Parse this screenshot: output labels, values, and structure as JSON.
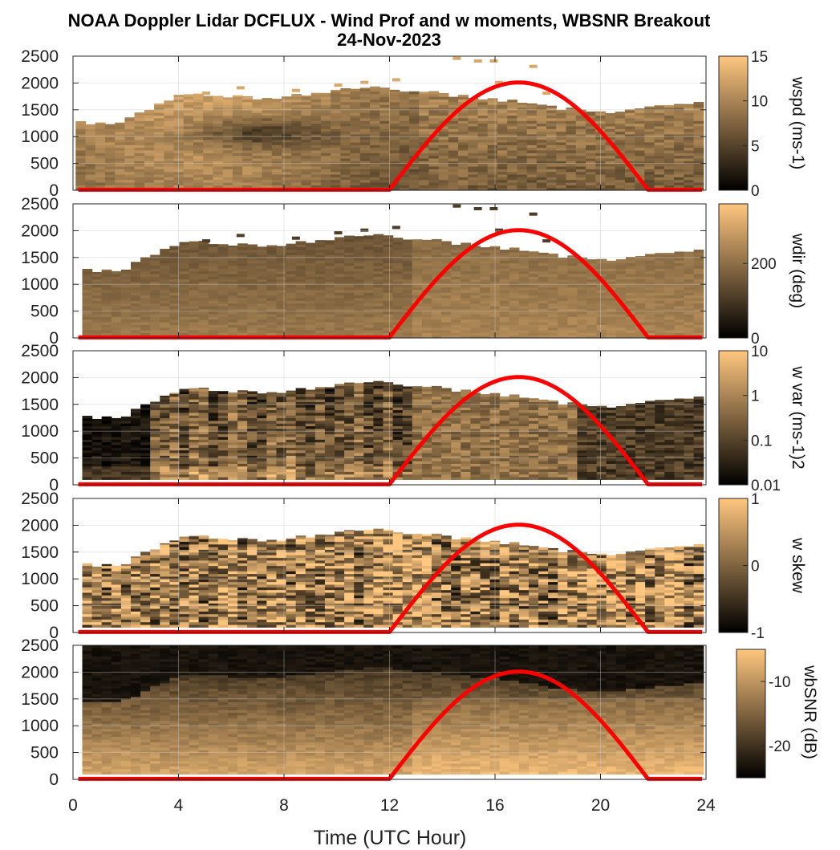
{
  "chart_data": {
    "type": "heatmap",
    "title": "NOAA Doppler Lidar DCFLUX - Wind Prof and w moments, WBSNR Breakout",
    "subtitle": "24-Nov-2023",
    "xlabel": "Time (UTC Hour)",
    "xlim": [
      0,
      24
    ],
    "xticks": [
      0,
      4,
      8,
      12,
      16,
      20,
      24
    ],
    "ylim": [
      0,
      2500
    ],
    "yticks": [
      0,
      500,
      1000,
      1500,
      2000,
      2500
    ],
    "colormap": "copper",
    "colormap_colors": [
      "#000000",
      "#ffc77f"
    ],
    "overlay_color": "#ff0000",
    "panels": [
      {
        "field": "wspd",
        "colorbar_label": "wspd (ms-1)",
        "clim": [
          0,
          15
        ],
        "colorbar_ticks": [
          "0",
          "5",
          "10",
          "15"
        ],
        "colorbar_tick_values": [
          0,
          5,
          10,
          15
        ],
        "scale": "linear"
      },
      {
        "field": "wdir",
        "colorbar_label": "wdir (deg)",
        "clim": [
          0,
          360
        ],
        "colorbar_ticks": [
          "0",
          "200"
        ],
        "colorbar_tick_values": [
          0,
          200
        ],
        "scale": "linear"
      },
      {
        "field": "w var",
        "colorbar_label": "w var (ms-1)2",
        "clim": [
          0.01,
          10
        ],
        "colorbar_ticks": [
          "0.01",
          "0.1",
          "1",
          "10"
        ],
        "colorbar_tick_values": [
          0.01,
          0.1,
          1,
          10
        ],
        "scale": "log"
      },
      {
        "field": "w skew",
        "colorbar_label": "w skew",
        "clim": [
          -1,
          1
        ],
        "colorbar_ticks": [
          "-1",
          "0",
          "1"
        ],
        "colorbar_tick_values": [
          -1,
          0,
          1
        ],
        "scale": "linear"
      },
      {
        "field": "wbSNR",
        "colorbar_label": "wbSNR (dB)",
        "clim": [
          -25,
          -5
        ],
        "colorbar_ticks": [
          "-20",
          "-10"
        ],
        "colorbar_tick_values": [
          -20,
          -10
        ],
        "scale": "linear"
      }
    ],
    "top_of_data_profile": {
      "x": [
        0,
        1,
        2,
        3,
        4,
        5,
        6,
        7,
        8,
        9,
        10,
        11,
        12,
        13,
        14,
        15,
        16,
        17,
        18,
        19,
        20,
        21,
        22,
        23,
        24
      ],
      "y": [
        1250,
        1250,
        1300,
        1550,
        1750,
        1800,
        1750,
        1700,
        1750,
        1800,
        1850,
        1900,
        1900,
        1850,
        1800,
        1750,
        1700,
        1650,
        1550,
        1500,
        1450,
        1500,
        1550,
        1600,
        1650
      ]
    },
    "overlay_curve": {
      "description_x": "hour",
      "sunrise": 12.0,
      "peak": 16.9,
      "sunset": 21.8,
      "max_height": 2000
    }
  }
}
